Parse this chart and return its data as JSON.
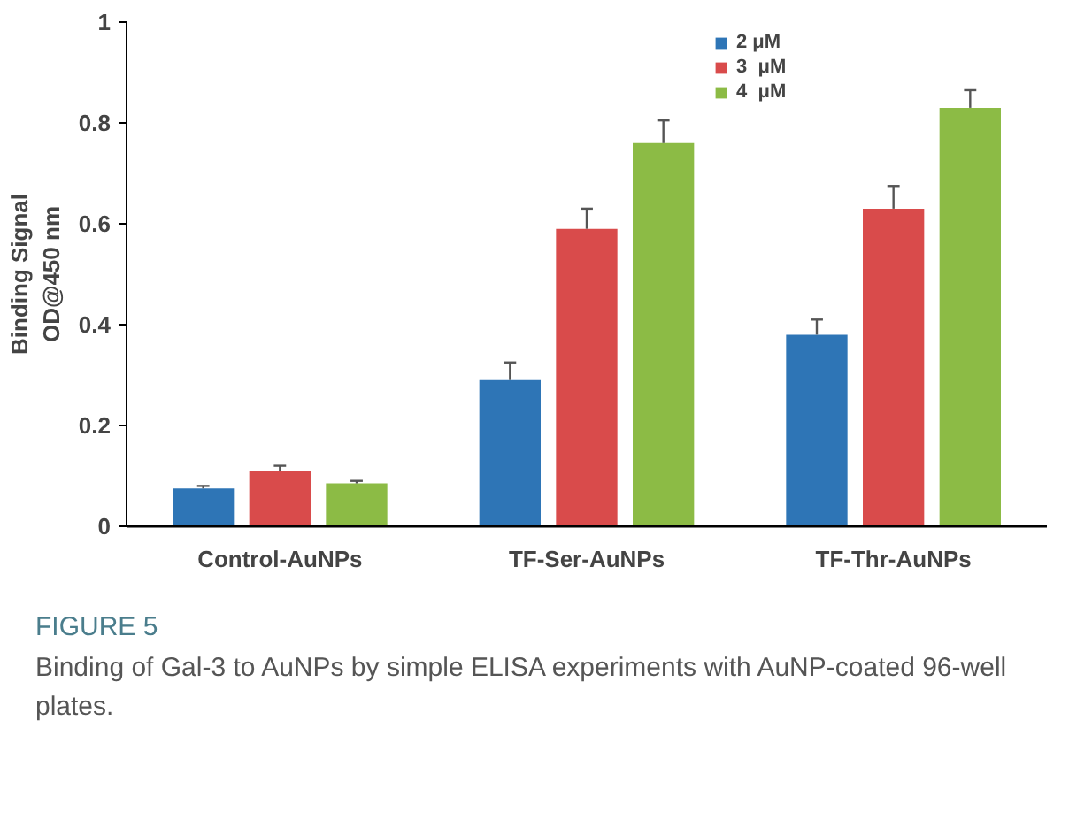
{
  "chart_data": {
    "type": "bar",
    "ylabel": "Binding Signal\nOD@450 nm",
    "categories": [
      "Control-AuNPs",
      "TF-Ser-AuNPs",
      "TF-Thr-AuNPs"
    ],
    "series": [
      {
        "name": "2 μM",
        "color": "#2e75b6",
        "values": [
          0.075,
          0.29,
          0.38
        ],
        "errors": [
          [
            0.075,
            0.08
          ],
          [
            0.29,
            0.325
          ],
          [
            0.38,
            0.41
          ]
        ]
      },
      {
        "name": "3  μM",
        "color": "#d94b4b",
        "values": [
          0.11,
          0.59,
          0.63
        ],
        "errors": [
          [
            0.11,
            0.12
          ],
          [
            0.59,
            0.63
          ],
          [
            0.63,
            0.675
          ]
        ]
      },
      {
        "name": "4  μM",
        "color": "#8cbb45",
        "values": [
          0.085,
          0.76,
          0.83
        ],
        "errors": [
          [
            0.085,
            0.09
          ],
          [
            0.76,
            0.805
          ],
          [
            0.83,
            0.865
          ]
        ]
      }
    ],
    "ylim": [
      0,
      1
    ],
    "yticks": [
      0,
      0.2,
      0.4,
      0.6,
      0.8,
      1
    ],
    "grid": false,
    "legend": "top right",
    "annotations": [
      "FIGURE 5",
      "Binding of Gal-3 to AuNPs by simple ELISA experiments with AuNP-coated 96-well plates."
    ]
  }
}
